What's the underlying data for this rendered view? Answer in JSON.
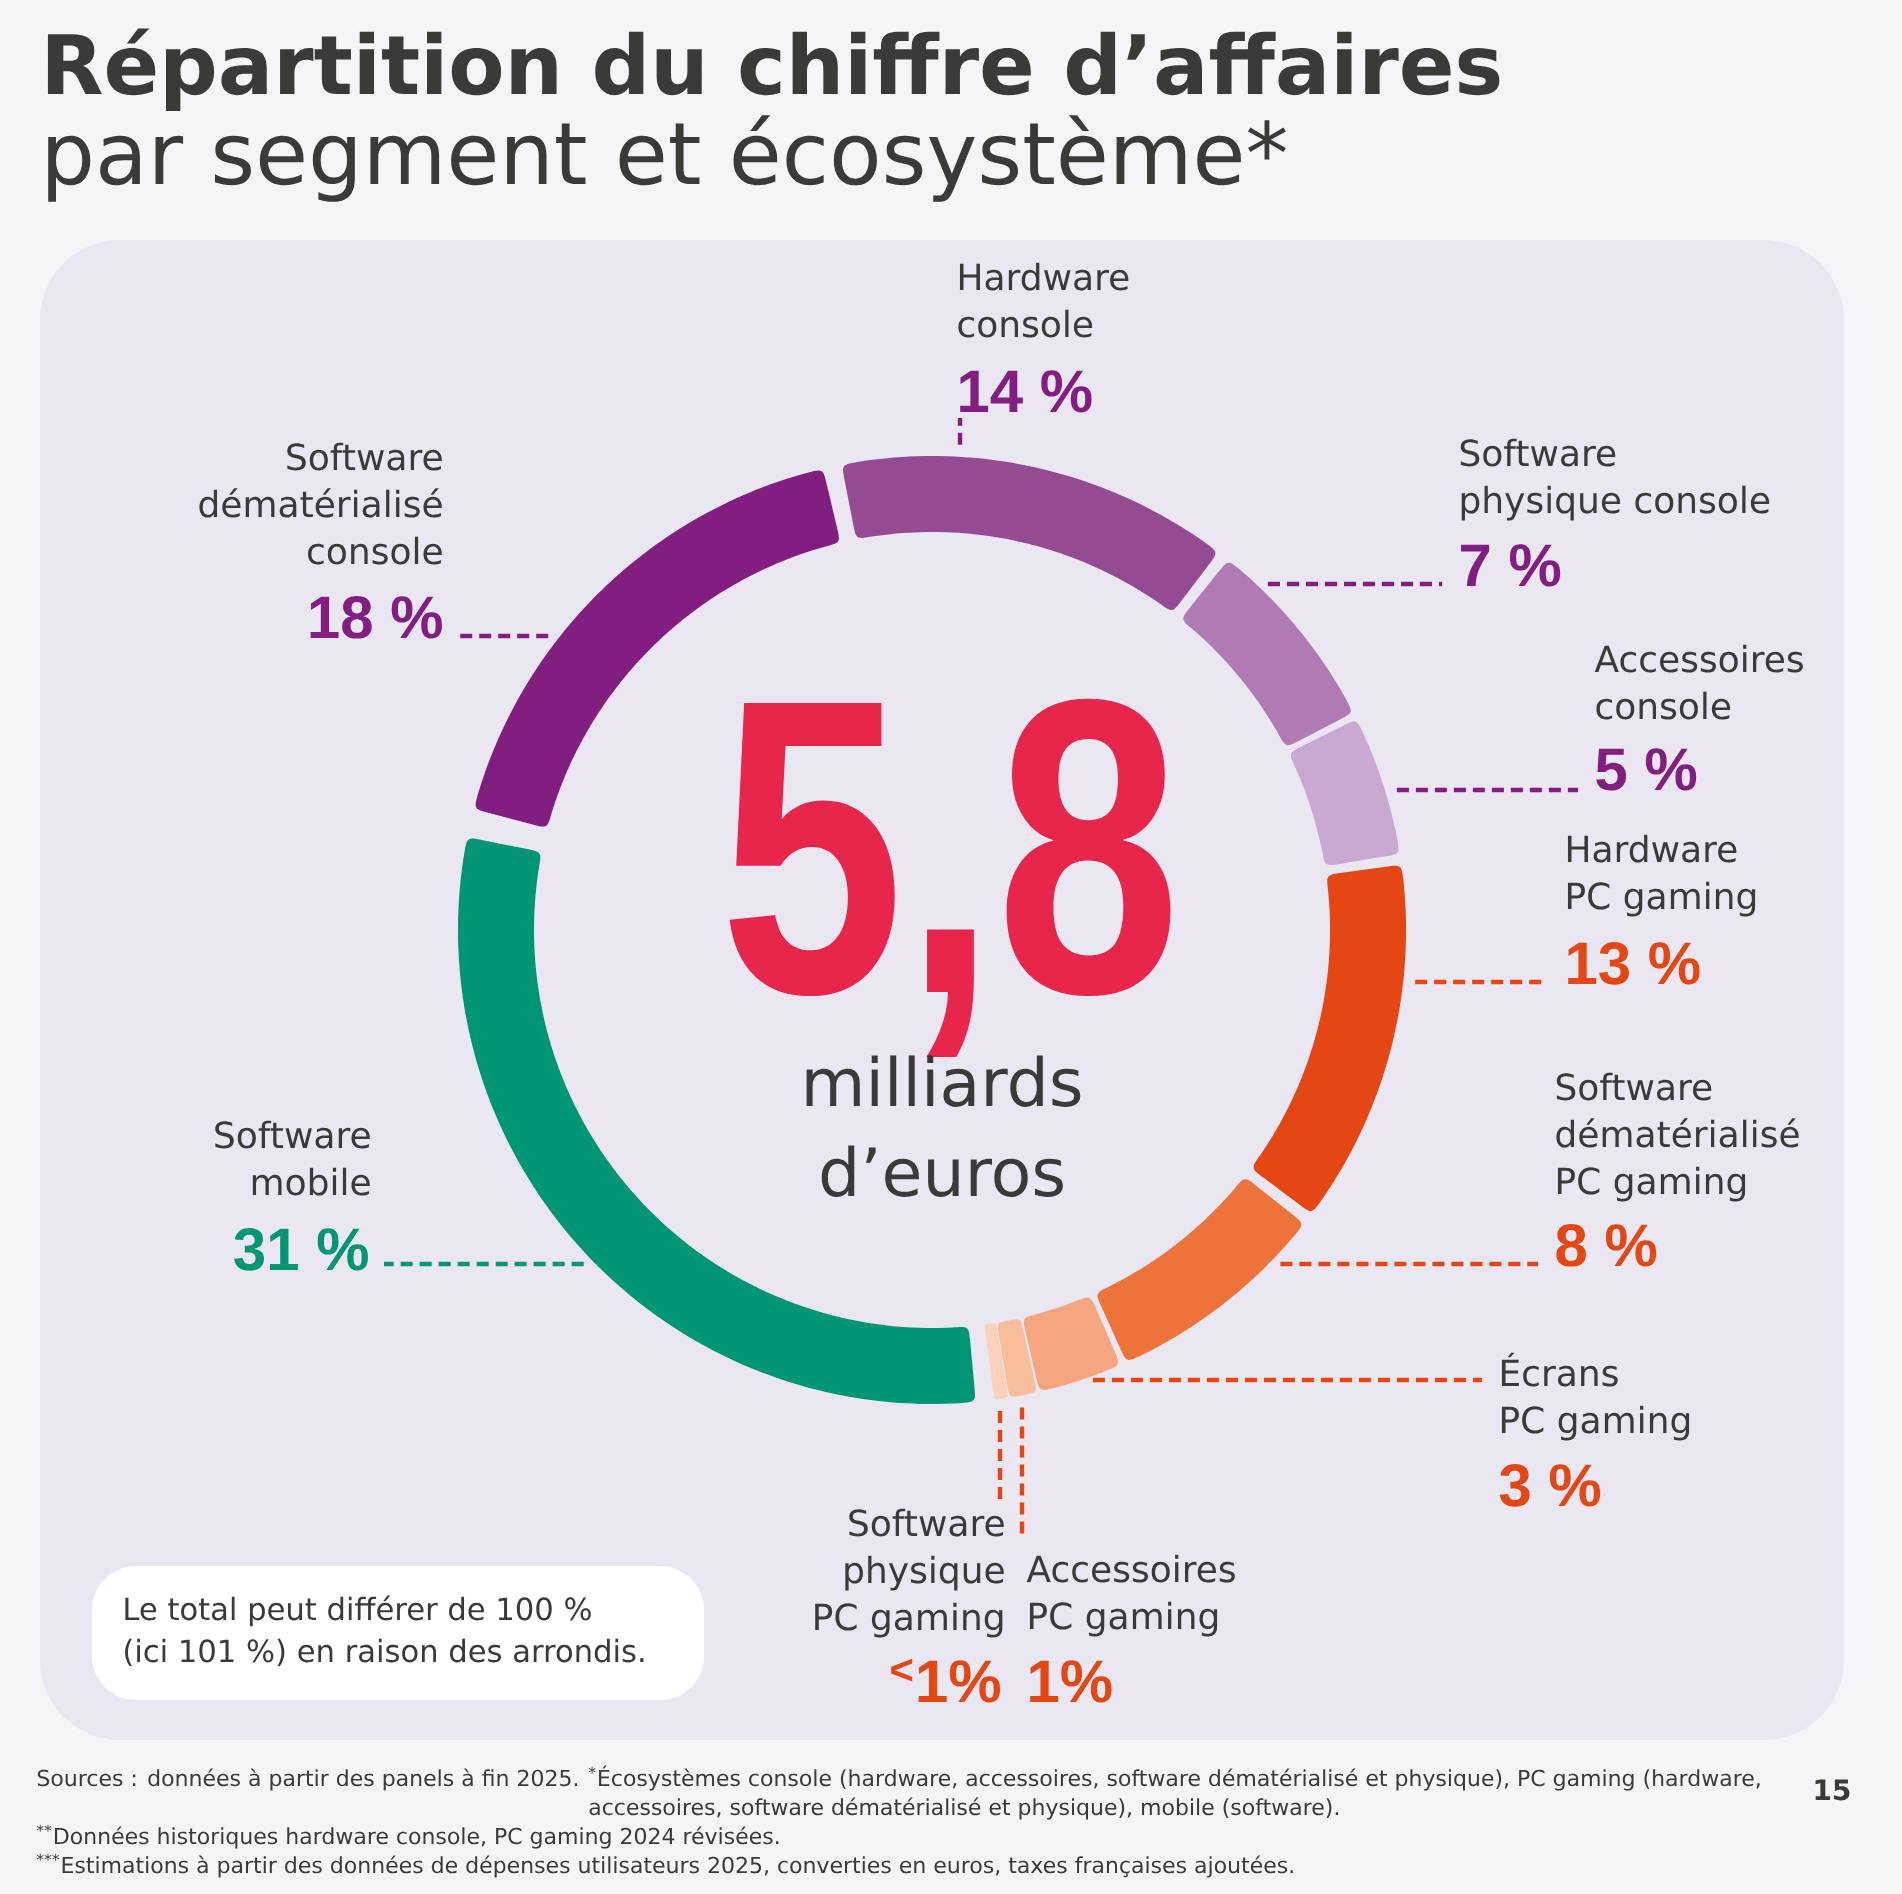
{
  "chart_data": {
    "type": "donut",
    "title": "Répartition du chiffre d’affaires",
    "subtitle": "par segment et écosystème*",
    "categories": [
      "Hardware console",
      "Software physique console",
      "Accessoires console",
      "Hardware PC gaming",
      "Software dématérialisé PC gaming",
      "Écrans PC gaming",
      "Accessoires PC gaming",
      "Software physique PC gaming",
      "Software mobile",
      "Software dématérialisé console"
    ],
    "values": [
      14,
      7,
      5,
      13,
      8,
      3,
      1,
      0.5,
      31,
      18
    ],
    "value_labels": [
      "14 %",
      "7 %",
      "5 %",
      "13 %",
      "8 %",
      "3 %",
      "1%",
      "$^{<}$1%",
      "31 %",
      "18 %"
    ],
    "colors": [
      "#944b94",
      "#b07ab3",
      "#c9a8d2",
      "#e44713",
      "#ee733b",
      "#f5a67e",
      "#f8bd9b",
      "#fad2bb",
      "#009574",
      "#821e80"
    ],
    "annotations": [
      "5,8",
      "milliards d’euros",
      "Le total peut différer de 100 % (ici 101 %) en raison des arrondis.",
      "Sources : données à partir des panels à fin 2025.",
      "$^{*}$Écosystèmes console (hardware, accessoires, software dématérialisé et physique), PC gaming (hardware, accessoires, software dématérialisé et physique), mobile (software).",
      "$^{**}$Données historiques hardware console, PC gaming 2024 révisées.",
      "$^{***}$Estimations à partir des données de dépenses utilisateurs 2025, converties en euros, taxes françaises ajoutées.",
      "15"
    ]
  }
}
